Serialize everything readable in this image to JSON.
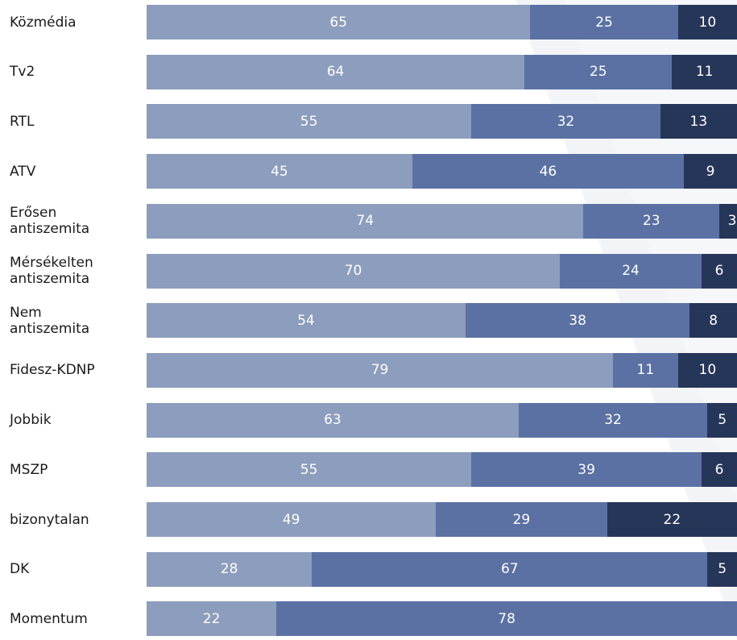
{
  "chart_data": {
    "type": "bar",
    "orientation": "horizontal",
    "stacked": true,
    "percent": true,
    "xlim": [
      0,
      100
    ],
    "title": "",
    "xlabel": "",
    "ylabel": "",
    "grid": false,
    "legend": "none",
    "categories": [
      "Közmédia",
      "Tv2",
      "RTL",
      "ATV",
      "Erősen antiszemita",
      "Mérsékelten antiszemita",
      "Nem antiszemita",
      "Fidesz-KDNP",
      "Jobbik",
      "MSZP",
      "bizonytalan",
      "DK",
      "Momentum"
    ],
    "series": [
      {
        "color": "#8c9dbd",
        "values": [
          65,
          64,
          55,
          45,
          74,
          70,
          54,
          79,
          63,
          55,
          49,
          28,
          22
        ]
      },
      {
        "color": "#5b71a3",
        "values": [
          25,
          25,
          32,
          46,
          23,
          24,
          38,
          11,
          32,
          39,
          29,
          67,
          78
        ]
      },
      {
        "color": "#263659",
        "values": [
          10,
          11,
          13,
          9,
          3,
          6,
          8,
          10,
          5,
          6,
          22,
          5,
          0
        ]
      }
    ]
  }
}
